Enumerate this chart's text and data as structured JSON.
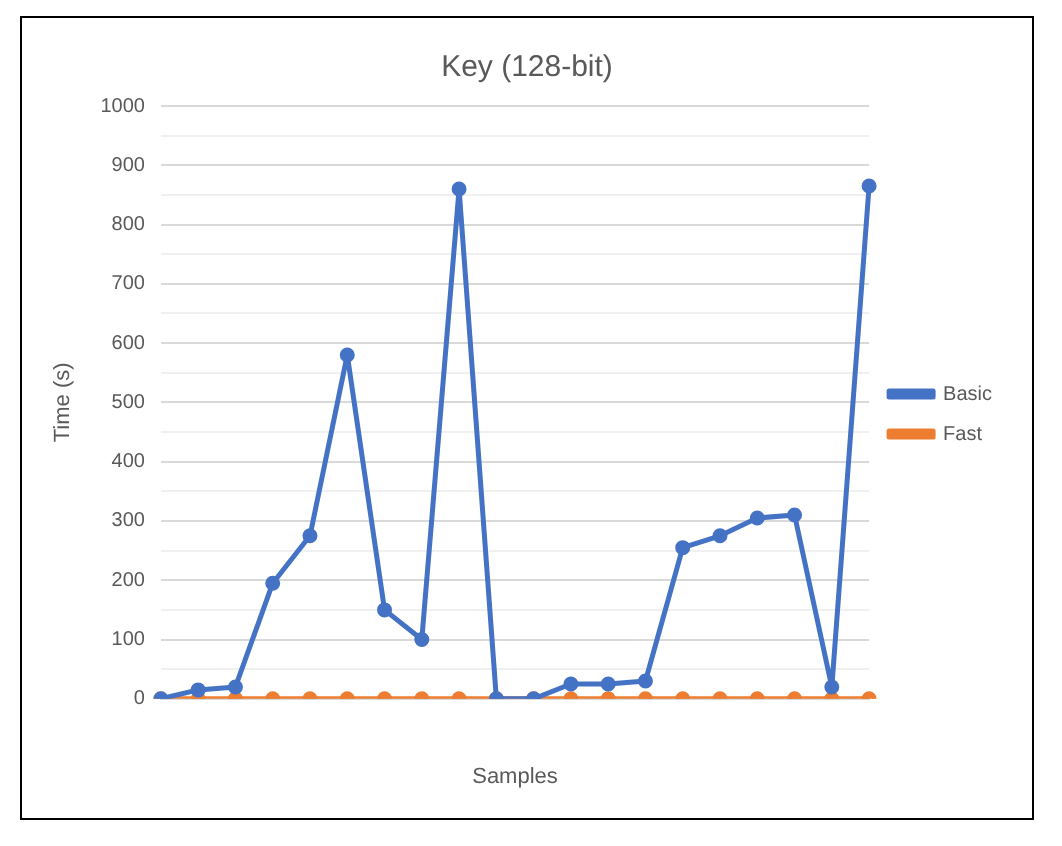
{
  "chart_data": {
    "type": "line",
    "title": "Key (128-bit)",
    "xlabel": "Samples",
    "ylabel": "Time (s)",
    "categories": [
      null,
      null,
      null,
      null,
      null,
      null,
      null,
      null,
      null,
      null,
      null,
      null,
      null,
      null,
      null,
      null,
      null,
      null,
      null,
      null
    ],
    "series": [
      {
        "name": "Basic",
        "color": "#4472c4",
        "values": [
          0,
          15,
          20,
          195,
          275,
          580,
          150,
          100,
          860,
          0,
          0,
          25,
          25,
          30,
          255,
          275,
          305,
          310,
          20,
          865
        ]
      },
      {
        "name": "Fast",
        "color": "#ed7d31",
        "values": [
          0,
          0,
          0,
          0,
          0,
          0,
          0,
          0,
          0,
          0,
          0,
          0,
          0,
          0,
          0,
          0,
          0,
          0,
          0,
          0
        ]
      }
    ],
    "ylim": [
      0,
      1000
    ],
    "yticks": [
      0,
      {
        "value": 50,
        "label": null
      },
      100,
      {
        "value": 150,
        "label": null
      },
      200,
      {
        "value": 250,
        "label": null
      },
      300,
      {
        "value": 350,
        "label": null
      },
      400,
      {
        "value": 450,
        "label": null
      },
      500,
      {
        "value": 550,
        "label": null
      },
      600,
      {
        "value": 650,
        "label": null
      },
      700,
      {
        "value": 750,
        "label": null
      },
      800,
      {
        "value": 850,
        "label": null
      },
      900,
      {
        "value": 950,
        "label": null
      },
      1000
    ],
    "grid": "y",
    "legend": "right",
    "marker": "circle",
    "line_style": "solid"
  }
}
